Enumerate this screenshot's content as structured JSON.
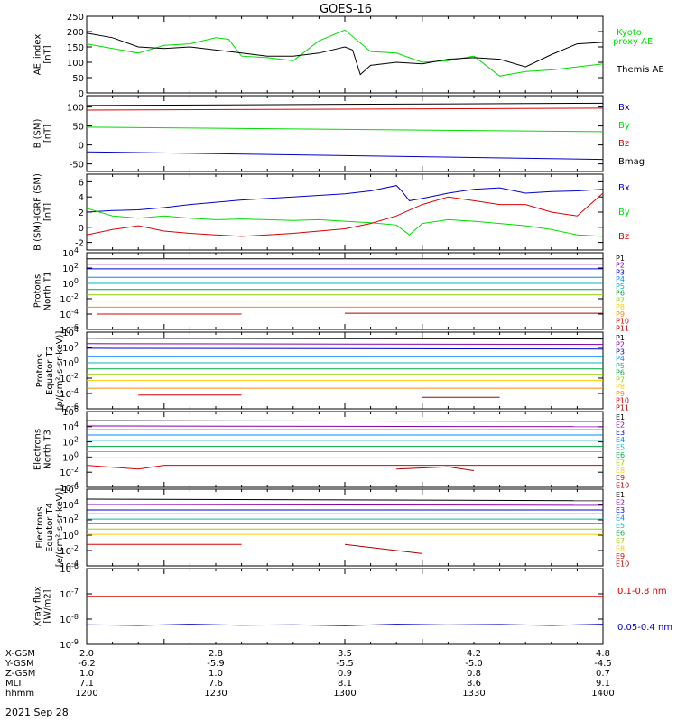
{
  "figure": {
    "title": "GOES-16",
    "date_label": "2021 Sep 28"
  },
  "colors": {
    "black": "#000000",
    "green": "#00dd00",
    "red": "#dd0000",
    "blue": "#0000cc"
  },
  "chart_data": [
    {
      "type": "line",
      "panel": "ae",
      "ylabel": [
        "AE_index",
        "[nT]"
      ],
      "ylim": [
        0,
        250
      ],
      "yticks": [
        "0",
        "50",
        "100",
        "150",
        "200",
        "250"
      ],
      "yscale": "linear",
      "series": [
        {
          "name": "Kyoto proxy AE",
          "color": "#00dd00",
          "x": [
            1200,
            1210,
            1220,
            1230,
            1240,
            1250,
            1255,
            1260,
            1270,
            1280,
            1290,
            1300,
            1310,
            1320,
            1330,
            1340,
            1350,
            1360,
            1370,
            1380,
            1390,
            1400
          ],
          "y": [
            160,
            145,
            130,
            155,
            160,
            180,
            175,
            120,
            115,
            105,
            170,
            205,
            135,
            130,
            100,
            105,
            120,
            55,
            70,
            75,
            85,
            95
          ]
        },
        {
          "name": "Themis AE",
          "color": "#000000",
          "x": [
            1200,
            1210,
            1220,
            1230,
            1240,
            1250,
            1260,
            1270,
            1280,
            1290,
            1300,
            1303,
            1306,
            1310,
            1320,
            1330,
            1340,
            1350,
            1360,
            1370,
            1380,
            1390,
            1400
          ],
          "y": [
            195,
            180,
            150,
            145,
            150,
            140,
            130,
            120,
            120,
            130,
            150,
            140,
            60,
            90,
            100,
            95,
            110,
            115,
            110,
            85,
            125,
            160,
            165
          ]
        }
      ]
    },
    {
      "type": "line",
      "panel": "b",
      "ylabel": [
        "B (SM)",
        "[nT]"
      ],
      "ylim": [
        -70,
        130
      ],
      "yticks": [
        "-50",
        "0",
        "50",
        "100"
      ],
      "yscale": "linear",
      "series": [
        {
          "name": "Bx",
          "color": "#0000cc",
          "x": [
            1200,
            1400
          ],
          "y": [
            -18,
            -38
          ]
        },
        {
          "name": "By",
          "color": "#00dd00",
          "x": [
            1200,
            1400
          ],
          "y": [
            47,
            35
          ]
        },
        {
          "name": "Bz",
          "color": "#dd0000",
          "x": [
            1200,
            1400
          ],
          "y": [
            92,
            97
          ]
        },
        {
          "name": "Bmag",
          "color": "#000000",
          "x": [
            1200,
            1400
          ],
          "y": [
            104,
            110
          ]
        }
      ]
    },
    {
      "type": "line",
      "panel": "db",
      "ylabel": [
        "B (SM)-IGRF (SM)",
        "[nT]"
      ],
      "ylim": [
        -3,
        7
      ],
      "yticks": [
        "-2",
        "0",
        "2",
        "4",
        "6"
      ],
      "yscale": "linear",
      "series": [
        {
          "name": "Bx",
          "color": "#0000cc",
          "x": [
            1200,
            1210,
            1220,
            1230,
            1240,
            1250,
            1260,
            1270,
            1280,
            1290,
            1300,
            1310,
            1320,
            1322,
            1325,
            1330,
            1340,
            1350,
            1360,
            1370,
            1380,
            1390,
            1400
          ],
          "y": [
            2,
            2.2,
            2.3,
            2.6,
            3,
            3.3,
            3.6,
            3.8,
            4,
            4.2,
            4.4,
            4.8,
            5.5,
            4.8,
            3.5,
            3.8,
            4.5,
            5,
            5.2,
            4.5,
            4.7,
            4.8,
            5
          ]
        },
        {
          "name": "By",
          "color": "#00dd00",
          "x": [
            1200,
            1210,
            1220,
            1230,
            1240,
            1250,
            1260,
            1270,
            1280,
            1290,
            1300,
            1310,
            1320,
            1325,
            1330,
            1340,
            1350,
            1360,
            1370,
            1380,
            1390,
            1400
          ],
          "y": [
            2.5,
            1.5,
            1.2,
            1.5,
            1.2,
            1,
            1.1,
            1,
            0.9,
            1,
            0.8,
            0.6,
            0.3,
            -1,
            0.5,
            1,
            0.8,
            0.5,
            0.2,
            -0.3,
            -1,
            -1.2
          ]
        },
        {
          "name": "Bz",
          "color": "#dd0000",
          "x": [
            1200,
            1210,
            1220,
            1230,
            1240,
            1250,
            1260,
            1270,
            1280,
            1290,
            1300,
            1310,
            1320,
            1330,
            1340,
            1350,
            1360,
            1370,
            1380,
            1390,
            1400
          ],
          "y": [
            -1,
            -0.3,
            0.2,
            -0.5,
            -0.8,
            -1,
            -1.2,
            -1,
            -0.8,
            -0.5,
            -0.2,
            0.5,
            1.5,
            3,
            4,
            3.5,
            3,
            3,
            2,
            1.5,
            4.5
          ]
        }
      ]
    },
    {
      "type": "line",
      "panel": "pn",
      "ylabel": [
        "Protons",
        "North T1"
      ],
      "ylim": [
        -6,
        4
      ],
      "yscale": "log",
      "yticks": [
        "10^4",
        "10^2",
        "10^0",
        "10^-2",
        "10^-4",
        "10^-6"
      ],
      "series": [
        {
          "name": "P1",
          "color": "#000000",
          "x": [
            1200,
            1400
          ],
          "y": [
            3.2,
            3.2
          ]
        },
        {
          "name": "P2",
          "color": "#8800aa",
          "x": [
            1200,
            1400
          ],
          "y": [
            2.5,
            2.5
          ]
        },
        {
          "name": "P3",
          "color": "#0000cc",
          "x": [
            1200,
            1400
          ],
          "y": [
            1.9,
            1.9
          ]
        },
        {
          "name": "P4",
          "color": "#0088ff",
          "x": [
            1200,
            1400
          ],
          "y": [
            0.8,
            0.8
          ]
        },
        {
          "name": "P5",
          "color": "#00bbbb",
          "x": [
            1200,
            1400
          ],
          "y": [
            0,
            0
          ]
        },
        {
          "name": "P6",
          "color": "#00aa44",
          "x": [
            1200,
            1400
          ],
          "y": [
            -0.8,
            -0.8
          ]
        },
        {
          "name": "P7",
          "color": "#99cc00",
          "x": [
            1200,
            1400
          ],
          "y": [
            -1.5,
            -1.5
          ]
        },
        {
          "name": "P8",
          "color": "#ffcc00",
          "x": [
            1200,
            1400
          ],
          "y": [
            -2.3,
            -2.3
          ]
        },
        {
          "name": "P9",
          "color": "#ff8800",
          "x": [
            1200,
            1400
          ],
          "y": [
            -3.1,
            -3.1
          ]
        },
        {
          "name": "P10",
          "color": "#dd0000",
          "x": [
            1204,
            1260
          ],
          "y": [
            -4,
            -4
          ]
        },
        {
          "name": "P11",
          "color": "#aa0000",
          "x": [
            1300,
            1400
          ],
          "y": [
            -3.9,
            -3.9
          ]
        }
      ]
    },
    {
      "type": "line",
      "panel": "pe",
      "ylabel": [
        "Protons",
        "Equator T2",
        "[p/(cm²-s-sr-keV)]"
      ],
      "ylim": [
        -6,
        4
      ],
      "yscale": "log",
      "yticks": [
        "10^4",
        "10^2",
        "10^0",
        "10^-2",
        "10^-4",
        "10^-6"
      ],
      "series": [
        {
          "name": "P1",
          "color": "#000000",
          "x": [
            1200,
            1400
          ],
          "y": [
            3.2,
            3.1
          ]
        },
        {
          "name": "P2",
          "color": "#8800aa",
          "x": [
            1200,
            1400
          ],
          "y": [
            2.5,
            2.4
          ]
        },
        {
          "name": "P3",
          "color": "#0000cc",
          "x": [
            1200,
            1400
          ],
          "y": [
            1.9,
            1.8
          ]
        },
        {
          "name": "P4",
          "color": "#0088ff",
          "x": [
            1200,
            1400
          ],
          "y": [
            0.8,
            0.8
          ]
        },
        {
          "name": "P5",
          "color": "#00bbbb",
          "x": [
            1200,
            1400
          ],
          "y": [
            0,
            0
          ]
        },
        {
          "name": "P6",
          "color": "#00aa44",
          "x": [
            1200,
            1400
          ],
          "y": [
            -0.8,
            -0.8
          ]
        },
        {
          "name": "P7",
          "color": "#99cc00",
          "x": [
            1200,
            1400
          ],
          "y": [
            -1.5,
            -1.5
          ]
        },
        {
          "name": "P8",
          "color": "#ffcc00",
          "x": [
            1200,
            1400
          ],
          "y": [
            -2.3,
            -2.3
          ]
        },
        {
          "name": "P9",
          "color": "#ff8800",
          "x": [
            1200,
            1400
          ],
          "y": [
            -3.3,
            -3.3
          ]
        },
        {
          "name": "P10",
          "color": "#dd0000",
          "x": [
            1220,
            1260
          ],
          "y": [
            -4.2,
            -4.2
          ]
        },
        {
          "name": "P11",
          "color": "#aa0000",
          "x": [
            1330,
            1360
          ],
          "y": [
            -4.5,
            -4.5
          ]
        }
      ]
    },
    {
      "type": "line",
      "panel": "en",
      "ylabel": [
        "Electrons",
        "North T3"
      ],
      "ylim": [
        -4,
        6
      ],
      "yscale": "log",
      "yticks": [
        "10^6",
        "10^4",
        "10^2",
        "10^0",
        "10^-2",
        "10^-4"
      ],
      "series": [
        {
          "name": "E1",
          "color": "#000000",
          "x": [
            1200,
            1400
          ],
          "y": [
            4.8,
            4.7
          ]
        },
        {
          "name": "E2",
          "color": "#8800aa",
          "x": [
            1200,
            1400
          ],
          "y": [
            4.1,
            4.0
          ]
        },
        {
          "name": "E3",
          "color": "#0000cc",
          "x": [
            1200,
            1400
          ],
          "y": [
            3.6,
            3.6
          ]
        },
        {
          "name": "E4",
          "color": "#0088ff",
          "x": [
            1200,
            1400
          ],
          "y": [
            2.9,
            2.9
          ]
        },
        {
          "name": "E5",
          "color": "#00bbbb",
          "x": [
            1200,
            1400
          ],
          "y": [
            2.2,
            2.2
          ]
        },
        {
          "name": "E6",
          "color": "#00aa44",
          "x": [
            1200,
            1400
          ],
          "y": [
            1.4,
            1.4
          ]
        },
        {
          "name": "E7",
          "color": "#99cc00",
          "x": [
            1200,
            1400
          ],
          "y": [
            0.7,
            0.7
          ]
        },
        {
          "name": "E8",
          "color": "#ffcc00",
          "x": [
            1200,
            1400
          ],
          "y": [
            -0.1,
            -0.1
          ]
        },
        {
          "name": "E9",
          "color": "#dd0000",
          "x": [
            1200,
            1220,
            1230,
            1400
          ],
          "y": [
            -1.1,
            -1.6,
            -1.1,
            -1.1
          ]
        },
        {
          "name": "E10",
          "color": "#aa0000",
          "x": [
            1320,
            1340,
            1350
          ],
          "y": [
            -1.6,
            -1.3,
            -1.8
          ]
        }
      ]
    },
    {
      "type": "line",
      "panel": "ee",
      "ylabel": [
        "Electrons",
        "Equator T4",
        "[e/(cm²-s-sr-keV)]"
      ],
      "ylim": [
        -4,
        6
      ],
      "yscale": "log",
      "yticks": [
        "10^6",
        "10^4",
        "10^2",
        "10^0",
        "10^-2",
        "10^-4"
      ],
      "series": [
        {
          "name": "E1",
          "color": "#000000",
          "x": [
            1200,
            1400
          ],
          "y": [
            4.7,
            4.5
          ]
        },
        {
          "name": "E2",
          "color": "#8800aa",
          "x": [
            1200,
            1400
          ],
          "y": [
            4.0,
            3.9
          ]
        },
        {
          "name": "E3",
          "color": "#0000cc",
          "x": [
            1200,
            1400
          ],
          "y": [
            3.3,
            3.3
          ]
        },
        {
          "name": "E4",
          "color": "#0088ff",
          "x": [
            1200,
            1400
          ],
          "y": [
            2.8,
            2.8
          ]
        },
        {
          "name": "E5",
          "color": "#00bbbb",
          "x": [
            1200,
            1400
          ],
          "y": [
            2.1,
            2.1
          ]
        },
        {
          "name": "E6",
          "color": "#00aa44",
          "x": [
            1200,
            1400
          ],
          "y": [
            1.5,
            1.5
          ]
        },
        {
          "name": "E7",
          "color": "#99cc00",
          "x": [
            1200,
            1400
          ],
          "y": [
            0.8,
            0.8
          ]
        },
        {
          "name": "E8",
          "color": "#ffcc00",
          "x": [
            1200,
            1400
          ],
          "y": [
            0.1,
            0.1
          ]
        },
        {
          "name": "E9",
          "color": "#dd0000",
          "x": [
            1200,
            1260
          ],
          "y": [
            -1.2,
            -1.2
          ]
        },
        {
          "name": "E10",
          "color": "#aa0000",
          "x": [
            1300,
            1330
          ],
          "y": [
            -1.2,
            -2.4
          ]
        }
      ]
    },
    {
      "type": "line",
      "panel": "xray",
      "ylabel": [
        "Xray flux",
        "[W/m2]"
      ],
      "ylim": [
        -9,
        -6
      ],
      "yscale": "log",
      "yticks": [
        "10^-6",
        "10^-7",
        "10^-8",
        "10^-9"
      ],
      "series": [
        {
          "name": "0.1-0.8 nm",
          "color": "#dd0000",
          "x": [
            1200,
            1400
          ],
          "y": [
            -7.1,
            -7.1
          ]
        },
        {
          "name": "0.05-0.4 nm",
          "color": "#0000cc",
          "x": [
            1200,
            1220,
            1240,
            1260,
            1280,
            1300,
            1320,
            1340,
            1360,
            1380,
            1400
          ],
          "y": [
            -8.22,
            -8.25,
            -8.2,
            -8.24,
            -8.22,
            -8.26,
            -8.2,
            -8.23,
            -8.21,
            -8.25,
            -8.2
          ]
        }
      ]
    }
  ],
  "xaxis": {
    "rows": [
      {
        "label": "X-GSM",
        "values": [
          "2.0",
          "2.8",
          "3.5",
          "4.2",
          "4.8"
        ]
      },
      {
        "label": "Y-GSM",
        "values": [
          "-6.2",
          "-5.9",
          "-5.5",
          "-5.0",
          "-4.5"
        ]
      },
      {
        "label": "Z-GSM",
        "values": [
          "1.0",
          "1.0",
          "0.9",
          "0.8",
          "0.7"
        ]
      },
      {
        "label": "MLT",
        "values": [
          "7.1",
          "7.6",
          "8.1",
          "8.6",
          "9.1"
        ]
      },
      {
        "label": "hhmm",
        "values": [
          "1200",
          "1230",
          "1300",
          "1330",
          "1400"
        ]
      }
    ]
  }
}
